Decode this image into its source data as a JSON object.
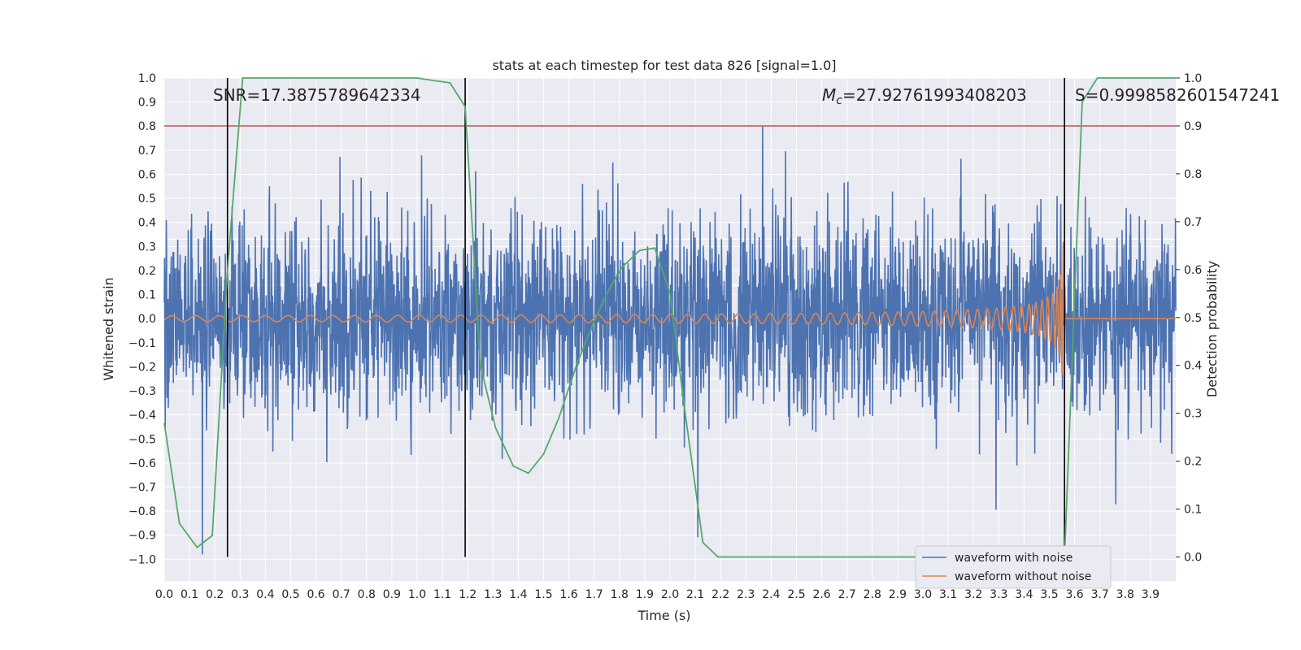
{
  "chart_data": {
    "type": "line",
    "title": "stats at each timestep for test data 826 [signal=1.0]",
    "xlabel": "Time (s)",
    "ylabel_left": "Whitened strain",
    "ylabel_right": "Detection probability",
    "xlim": [
      0.0,
      4.0
    ],
    "ylim_left": [
      -1.09,
      1.0
    ],
    "ylim_right": [
      -0.05,
      1.0
    ],
    "x_ticks": [
      "0.0",
      "0.1",
      "0.2",
      "0.3",
      "0.4",
      "0.5",
      "0.6",
      "0.7",
      "0.8",
      "0.9",
      "1.0",
      "1.1",
      "1.2",
      "1.3",
      "1.4",
      "1.5",
      "1.6",
      "1.7",
      "1.8",
      "1.9",
      "2.0",
      "2.1",
      "2.2",
      "2.3",
      "2.4",
      "2.5",
      "2.6",
      "2.7",
      "2.8",
      "2.9",
      "3.0",
      "3.1",
      "3.2",
      "3.3",
      "3.4",
      "3.5",
      "3.6",
      "3.7",
      "3.8",
      "3.9"
    ],
    "y_ticks_left": [
      "−1.0",
      "−0.9",
      "−0.8",
      "−0.7",
      "−0.6",
      "−0.5",
      "−0.4",
      "−0.3",
      "−0.2",
      "−0.1",
      "0.0",
      "0.1",
      "0.2",
      "0.3",
      "0.4",
      "0.5",
      "0.6",
      "0.7",
      "0.8",
      "0.9",
      "1.0"
    ],
    "y_ticks_right": [
      "0.0",
      "0.1",
      "0.2",
      "0.3",
      "0.4",
      "0.5",
      "0.6",
      "0.7",
      "0.8",
      "0.9",
      "1.0"
    ],
    "grid": true,
    "legend_position": "lower-right",
    "annotations": {
      "snr": "SNR=17.3875789642334",
      "mc_symbol": "M",
      "mc_sub": "c",
      "mc_value": "=27.92761993408203",
      "s": "S=0.9998582601547241"
    },
    "series": [
      {
        "name": "waveform with noise",
        "color": "#4c72b0",
        "axis": "left",
        "style": "dense noisy strain, amplitude ~0.3–0.8"
      },
      {
        "name": "waveform without noise",
        "color": "#dd8452",
        "axis": "left",
        "style": "chirp ending near 3.56 s"
      }
    ],
    "detection_probability": {
      "color": "#55a868",
      "axis": "right",
      "x": [
        0.0,
        0.06,
        0.13,
        0.19,
        0.25,
        0.31,
        0.38,
        0.44,
        0.5,
        0.56,
        0.63,
        0.69,
        0.75,
        0.81,
        0.88,
        0.94,
        1.0,
        1.06,
        1.13,
        1.19,
        1.25,
        1.31,
        1.38,
        1.44,
        1.5,
        1.56,
        1.63,
        1.69,
        1.75,
        1.81,
        1.88,
        1.94,
        2.0,
        2.06,
        2.13,
        2.19,
        2.25,
        2.31,
        2.38,
        2.44,
        2.5,
        2.56,
        2.63,
        2.69,
        2.75,
        2.81,
        2.88,
        2.94,
        3.0,
        3.06,
        3.13,
        3.19,
        3.25,
        3.31,
        3.38,
        3.44,
        3.5,
        3.56,
        3.63,
        3.69,
        3.75,
        3.81,
        3.88,
        3.94,
        4.0
      ],
      "y": [
        0.28,
        0.07,
        0.02,
        0.045,
        0.6,
        1.0,
        1.0,
        1.0,
        1.0,
        1.0,
        1.0,
        1.0,
        1.0,
        1.0,
        1.0,
        1.0,
        1.0,
        0.995,
        0.99,
        0.94,
        0.4,
        0.27,
        0.19,
        0.175,
        0.215,
        0.29,
        0.4,
        0.48,
        0.55,
        0.605,
        0.64,
        0.645,
        0.55,
        0.3,
        0.03,
        0.0,
        0.0,
        0.0,
        0.0,
        0.0,
        0.0,
        0.0,
        0.0,
        0.0,
        0.0,
        0.0,
        0.0,
        0.0,
        0.0,
        0.0,
        0.0,
        0.0,
        0.0,
        0.0,
        0.0,
        0.0,
        0.0,
        0.0,
        0.95,
        1.0,
        1.0,
        1.0,
        1.0,
        1.0,
        1.0
      ]
    },
    "threshold_line": {
      "value": 0.9,
      "axis": "right",
      "color": "#c44e52"
    },
    "vertical_lines": [
      0.25,
      1.19,
      3.56
    ],
    "horizontal_white_lines_left": [
      0.33,
      0.14,
      -0.04,
      -0.25
    ]
  }
}
